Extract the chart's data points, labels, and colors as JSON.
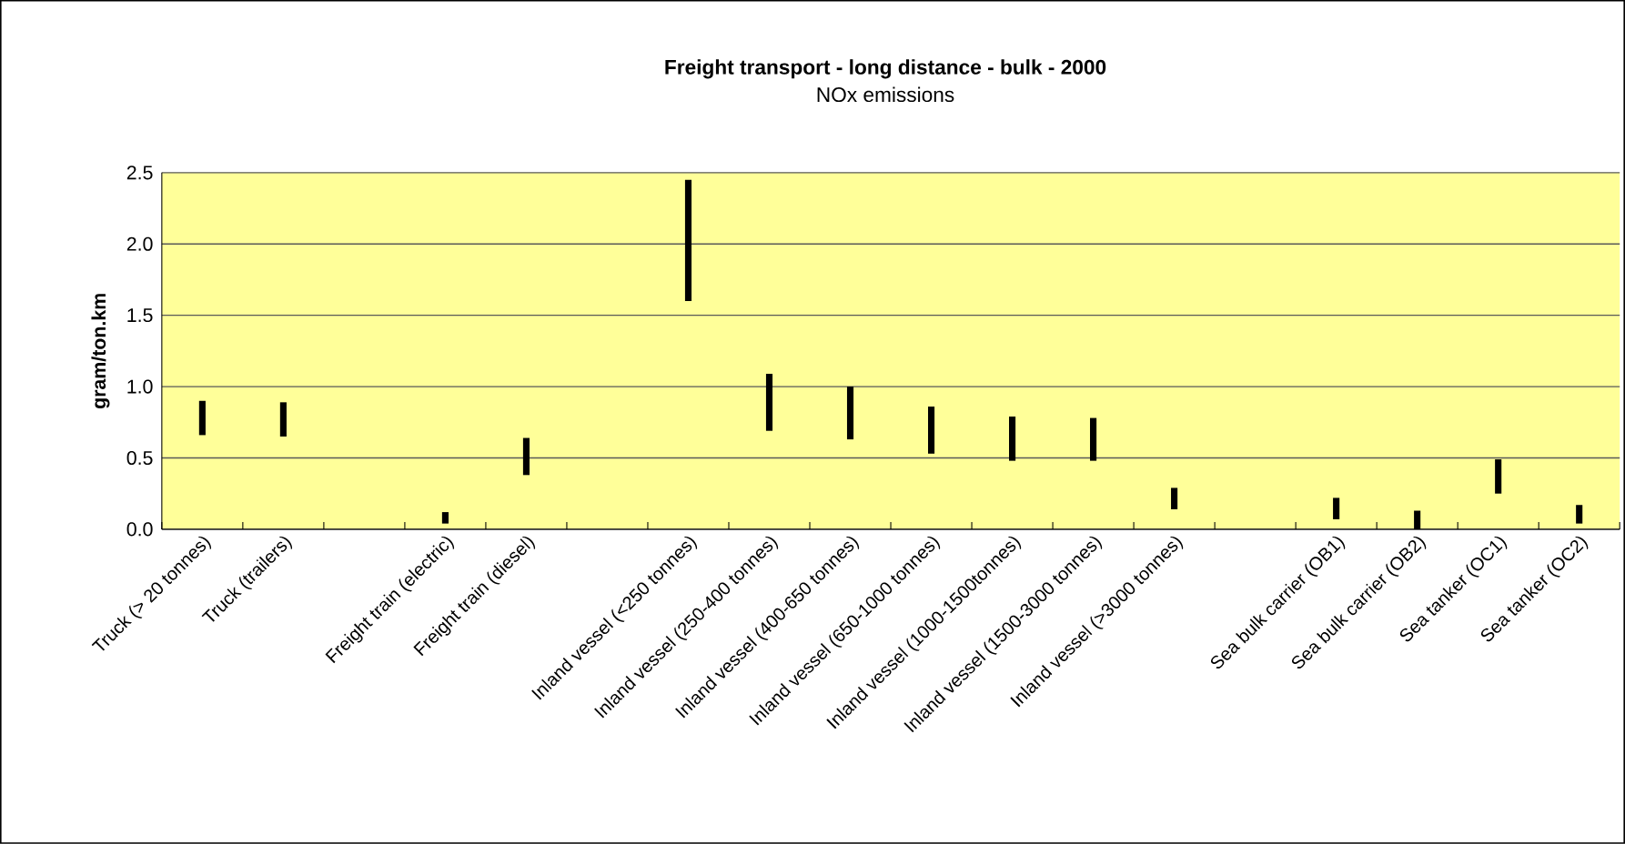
{
  "chart_data": {
    "type": "bar",
    "title": "Freight transport - long distance - bulk - 2000",
    "subtitle": "NOx emissions",
    "ylabel": "gram/ton.km",
    "categories": [
      "Truck (> 20 tonnes)",
      "Truck (trailers)",
      null,
      "Freight train (electric)",
      "Freight train (diesel)",
      null,
      "Inland vessel (<250 tonnes)",
      "Inland vessel (250-400 tonnes)",
      "Inland vessel (400-650 tonnes)",
      "Inland vessel (650-1000 tonnes)",
      "Inland vessel (1000-1500tonnes)",
      "Inland vessel (1500-3000 tonnes)",
      "Inland vessel (>3000 tonnes)",
      null,
      "Sea bulk carrier (OB1)",
      "Sea bulk carrier (OB2)",
      "Sea tanker (OC1)",
      "Sea tanker (OC2)"
    ],
    "base": [
      0.66,
      0.65,
      null,
      0.04,
      0.38,
      null,
      1.6,
      0.69,
      0.63,
      0.53,
      0.48,
      0.48,
      0.14,
      null,
      0.07,
      0.0,
      0.25,
      0.04
    ],
    "values": [
      0.24,
      0.24,
      null,
      0.08,
      0.26,
      null,
      0.85,
      0.4,
      0.37,
      0.33,
      0.31,
      0.3,
      0.15,
      null,
      0.15,
      0.13,
      0.24,
      0.13
    ],
    "color": "#000000",
    "ylim": [
      0,
      2.5
    ],
    "yticks": [
      {
        "value": 0,
        "label": "0.0"
      },
      {
        "value": 0.5,
        "label": "0.5"
      },
      {
        "value": 1.0,
        "label": "1.0"
      },
      {
        "value": 1.5,
        "label": "1.5"
      },
      {
        "value": 2.0,
        "label": "2.0"
      },
      {
        "value": 2.5,
        "label": "2.5"
      }
    ],
    "grid": "y"
  }
}
